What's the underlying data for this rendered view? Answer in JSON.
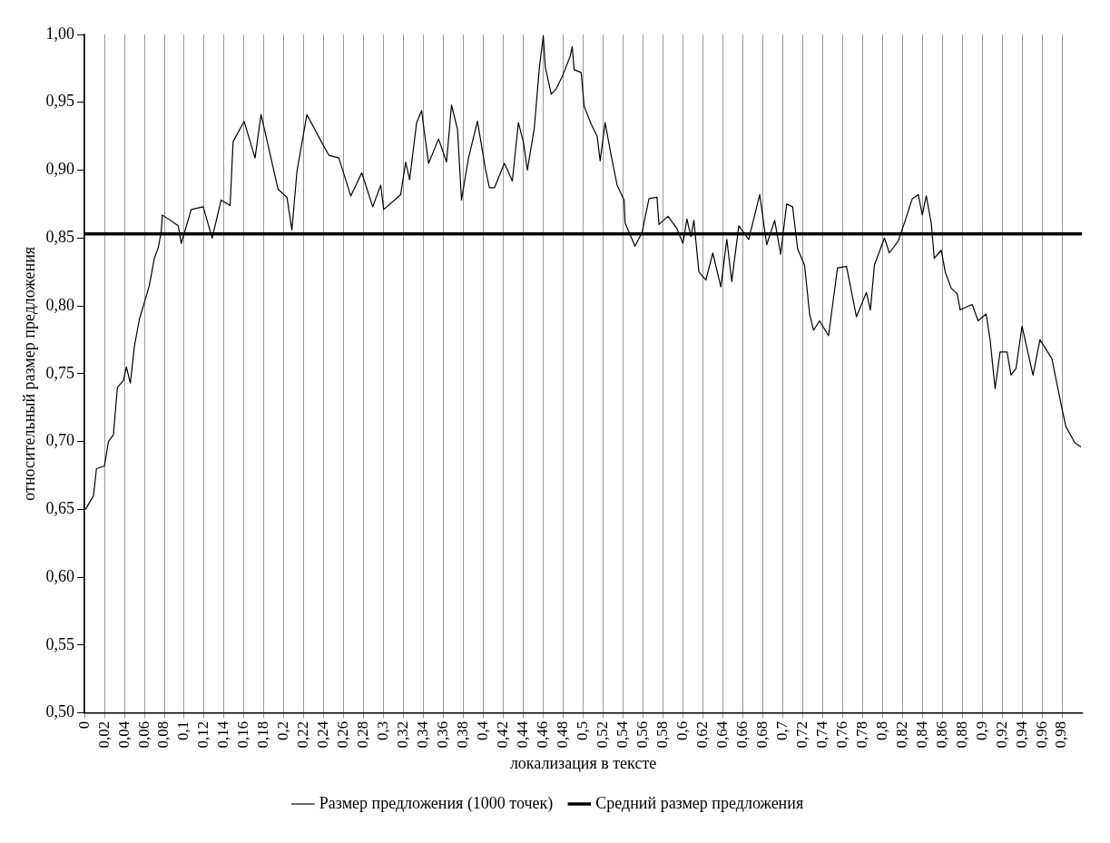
{
  "chart_data": {
    "type": "line",
    "xlabel": "локализация в тексте",
    "ylabel": "относительный размер предложения",
    "xlim": [
      0,
      1
    ],
    "xticks": [
      {
        "value": 0,
        "label": "0"
      },
      {
        "value": 0.02,
        "label": "0,02"
      },
      {
        "value": 0.04,
        "label": "0,04"
      },
      {
        "value": 0.06,
        "label": "0,06"
      },
      {
        "value": 0.08,
        "label": "0,08"
      },
      {
        "value": 0.1,
        "label": "0,1"
      },
      {
        "value": 0.12,
        "label": "0,12"
      },
      {
        "value": 0.14,
        "label": "0,14"
      },
      {
        "value": 0.16,
        "label": "0,16"
      },
      {
        "value": 0.18,
        "label": "0,18"
      },
      {
        "value": 0.2,
        "label": "0,2"
      },
      {
        "value": 0.22,
        "label": "0,22"
      },
      {
        "value": 0.24,
        "label": "0,24"
      },
      {
        "value": 0.26,
        "label": "0,26"
      },
      {
        "value": 0.28,
        "label": "0,28"
      },
      {
        "value": 0.3,
        "label": "0,3"
      },
      {
        "value": 0.32,
        "label": "0,32"
      },
      {
        "value": 0.34,
        "label": "0,34"
      },
      {
        "value": 0.36,
        "label": "0,36"
      },
      {
        "value": 0.38,
        "label": "0,38"
      },
      {
        "value": 0.4,
        "label": "0,4"
      },
      {
        "value": 0.42,
        "label": "0,42"
      },
      {
        "value": 0.44,
        "label": "0,44"
      },
      {
        "value": 0.46,
        "label": "0,46"
      },
      {
        "value": 0.48,
        "label": "0,48"
      },
      {
        "value": 0.5,
        "label": "0,5"
      },
      {
        "value": 0.52,
        "label": "0,52"
      },
      {
        "value": 0.54,
        "label": "0,54"
      },
      {
        "value": 0.56,
        "label": "0,56"
      },
      {
        "value": 0.58,
        "label": "0,58"
      },
      {
        "value": 0.6,
        "label": "0,6"
      },
      {
        "value": 0.62,
        "label": "0,62"
      },
      {
        "value": 0.64,
        "label": "0,64"
      },
      {
        "value": 0.66,
        "label": "0,66"
      },
      {
        "value": 0.68,
        "label": "0,68"
      },
      {
        "value": 0.7,
        "label": "0,7"
      },
      {
        "value": 0.72,
        "label": "0,72"
      },
      {
        "value": 0.74,
        "label": "0,74"
      },
      {
        "value": 0.76,
        "label": "0,76"
      },
      {
        "value": 0.78,
        "label": "0,78"
      },
      {
        "value": 0.8,
        "label": "0,8"
      },
      {
        "value": 0.82,
        "label": "0,82"
      },
      {
        "value": 0.84,
        "label": "0,84"
      },
      {
        "value": 0.86,
        "label": "0,86"
      },
      {
        "value": 0.88,
        "label": "0,88"
      },
      {
        "value": 0.9,
        "label": "0,9"
      },
      {
        "value": 0.92,
        "label": "0,92"
      },
      {
        "value": 0.94,
        "label": "0,94"
      },
      {
        "value": 0.96,
        "label": "0,96"
      },
      {
        "value": 0.98,
        "label": "0,98"
      }
    ],
    "ylim": [
      0.5,
      1
    ],
    "yticks": [
      {
        "value": 0.5,
        "label": "0,50"
      },
      {
        "value": 0.55,
        "label": "0,55"
      },
      {
        "value": 0.6,
        "label": "0,60"
      },
      {
        "value": 0.65,
        "label": "0,65"
      },
      {
        "value": 0.7,
        "label": "0,70"
      },
      {
        "value": 0.75,
        "label": "0,75"
      },
      {
        "value": 0.8,
        "label": "0,80"
      },
      {
        "value": 0.85,
        "label": "0,85"
      },
      {
        "value": 0.9,
        "label": "0,90"
      },
      {
        "value": 0.95,
        "label": "0,95"
      },
      {
        "value": 1,
        "label": "1,00"
      }
    ],
    "grid": "x",
    "legend": "bottom",
    "marker": "none",
    "line_style": "solid",
    "series": [
      {
        "name": "Размер предложения (1000 точек)",
        "color": "#000000",
        "x": [
          0.001,
          0.009,
          0.012,
          0.02,
          0.024,
          0.029,
          0.033,
          0.039,
          0.042,
          0.046,
          0.05,
          0.055,
          0.059,
          0.065,
          0.07,
          0.074,
          0.077,
          0.078,
          0.094,
          0.097,
          0.107,
          0.119,
          0.128,
          0.137,
          0.146,
          0.149,
          0.16,
          0.171,
          0.177,
          0.182,
          0.194,
          0.203,
          0.208,
          0.213,
          0.223,
          0.236,
          0.245,
          0.255,
          0.267,
          0.278,
          0.289,
          0.297,
          0.3,
          0.317,
          0.322,
          0.326,
          0.333,
          0.338,
          0.342,
          0.345,
          0.355,
          0.363,
          0.368,
          0.374,
          0.378,
          0.385,
          0.394,
          0.402,
          0.406,
          0.411,
          0.421,
          0.429,
          0.435,
          0.44,
          0.444,
          0.451,
          0.456,
          0.46,
          0.462,
          0.468,
          0.473,
          0.479,
          0.487,
          0.489,
          0.491,
          0.498,
          0.501,
          0.508,
          0.514,
          0.517,
          0.522,
          0.528,
          0.534,
          0.541,
          0.542,
          0.552,
          0.559,
          0.566,
          0.574,
          0.576,
          0.585,
          0.594,
          0.6,
          0.604,
          0.608,
          0.611,
          0.616,
          0.623,
          0.63,
          0.638,
          0.644,
          0.649,
          0.656,
          0.666,
          0.677,
          0.684,
          0.692,
          0.698,
          0.704,
          0.71,
          0.715,
          0.722,
          0.727,
          0.731,
          0.737,
          0.746,
          0.755,
          0.764,
          0.774,
          0.784,
          0.788,
          0.792,
          0.802,
          0.807,
          0.816,
          0.822,
          0.83,
          0.836,
          0.84,
          0.844,
          0.849,
          0.852,
          0.859,
          0.863,
          0.869,
          0.875,
          0.878,
          0.89,
          0.896,
          0.904,
          0.908,
          0.913,
          0.918,
          0.925,
          0.929,
          0.934,
          0.94,
          0.951,
          0.958,
          0.97,
          0.976,
          0.981,
          0.984,
          0.993,
          0.999
        ],
        "values": [
          0.65,
          0.66,
          0.68,
          0.682,
          0.7,
          0.705,
          0.74,
          0.745,
          0.755,
          0.743,
          0.77,
          0.79,
          0.8,
          0.815,
          0.835,
          0.843,
          0.855,
          0.867,
          0.859,
          0.846,
          0.871,
          0.873,
          0.85,
          0.878,
          0.874,
          0.921,
          0.936,
          0.909,
          0.941,
          0.925,
          0.886,
          0.88,
          0.856,
          0.899,
          0.941,
          0.923,
          0.911,
          0.909,
          0.881,
          0.898,
          0.873,
          0.889,
          0.871,
          0.882,
          0.906,
          0.893,
          0.935,
          0.944,
          0.921,
          0.905,
          0.923,
          0.906,
          0.948,
          0.93,
          0.878,
          0.909,
          0.936,
          0.901,
          0.887,
          0.887,
          0.905,
          0.892,
          0.935,
          0.921,
          0.9,
          0.931,
          0.975,
          0.999,
          0.976,
          0.956,
          0.96,
          0.969,
          0.984,
          0.991,
          0.974,
          0.972,
          0.947,
          0.934,
          0.925,
          0.907,
          0.935,
          0.911,
          0.889,
          0.878,
          0.861,
          0.844,
          0.854,
          0.879,
          0.88,
          0.86,
          0.866,
          0.857,
          0.846,
          0.864,
          0.851,
          0.863,
          0.825,
          0.819,
          0.839,
          0.814,
          0.849,
          0.818,
          0.859,
          0.849,
          0.882,
          0.845,
          0.863,
          0.838,
          0.875,
          0.873,
          0.842,
          0.83,
          0.794,
          0.782,
          0.789,
          0.778,
          0.828,
          0.829,
          0.792,
          0.81,
          0.797,
          0.83,
          0.85,
          0.839,
          0.848,
          0.861,
          0.879,
          0.882,
          0.867,
          0.881,
          0.861,
          0.835,
          0.841,
          0.825,
          0.813,
          0.809,
          0.797,
          0.801,
          0.789,
          0.794,
          0.775,
          0.739,
          0.766,
          0.766,
          0.749,
          0.754,
          0.785,
          0.749,
          0.775,
          0.761,
          0.739,
          0.721,
          0.711,
          0.699,
          0.696
        ]
      }
    ],
    "ref_lines": [
      {
        "axis": "y",
        "value": 0.853,
        "label": "Средний размер предложения",
        "color": "#000000",
        "line_style": "solid"
      }
    ]
  }
}
